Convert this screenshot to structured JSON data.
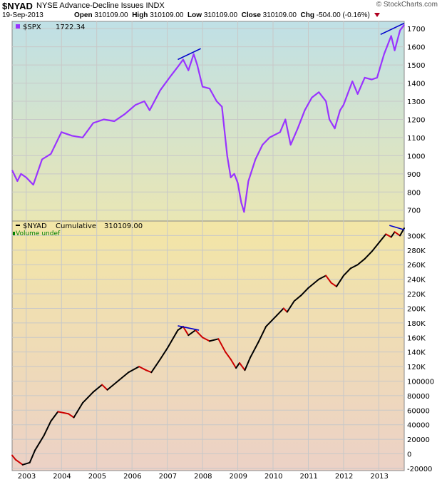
{
  "header": {
    "symbol": "$NYAD",
    "description": "NYSE Advance-Decline Issues  INDX",
    "date": "19-Sep-2013",
    "open_label": "Open",
    "open": "310109.00",
    "high_label": "High",
    "high": "310109.00",
    "low_label": "Low",
    "low": "310109.00",
    "close_label": "Close",
    "close": "310109.00",
    "chg_label": "Chg",
    "chg": "-504.00 (-0.16%)",
    "watermark": "© StockCharts.com"
  },
  "colors": {
    "spx_line": "#9933ff",
    "nyad_up": "#000000",
    "nyad_down": "#cc0000",
    "trendline": "#0000cc",
    "grid": "#c8c8c8",
    "volume_text": "#008000"
  },
  "chart_data": [
    {
      "type": "line",
      "legend": "$SPX",
      "legend_value": "1722.34",
      "ylim": [
        640,
        1740
      ],
      "yticks": [
        700,
        800,
        900,
        1000,
        1100,
        1200,
        1300,
        1400,
        1500,
        1600,
        1700
      ],
      "ytick_labels": [
        "700",
        "800",
        "900",
        "1000",
        "1100",
        "1200",
        "1300",
        "1400",
        "1500",
        "1600",
        "1700"
      ],
      "series": [
        {
          "x": [
            2002.6,
            2002.75,
            2002.85,
            2003.0,
            2003.2,
            2003.45,
            2003.7,
            2004.0,
            2004.3,
            2004.6,
            2004.9,
            2005.2,
            2005.5,
            2005.8,
            2006.1,
            2006.35,
            2006.5,
            2006.8,
            2007.1,
            2007.3,
            2007.45,
            2007.6,
            2007.75,
            2007.85,
            2008.0,
            2008.2,
            2008.4,
            2008.55,
            2008.7,
            2008.8,
            2008.9,
            2009.0,
            2009.1,
            2009.18,
            2009.3,
            2009.5,
            2009.7,
            2009.9,
            2010.2,
            2010.35,
            2010.5,
            2010.7,
            2010.9,
            2011.1,
            2011.3,
            2011.5,
            2011.6,
            2011.75,
            2011.9,
            2012.0,
            2012.25,
            2012.4,
            2012.6,
            2012.8,
            2012.95,
            2013.15,
            2013.35,
            2013.45,
            2013.6,
            2013.72
          ],
          "values": [
            920,
            860,
            900,
            880,
            840,
            980,
            1010,
            1130,
            1110,
            1100,
            1180,
            1200,
            1190,
            1230,
            1280,
            1300,
            1250,
            1360,
            1440,
            1490,
            1530,
            1470,
            1560,
            1500,
            1380,
            1370,
            1300,
            1270,
            1000,
            880,
            900,
            850,
            740,
            690,
            860,
            980,
            1060,
            1100,
            1130,
            1200,
            1060,
            1150,
            1250,
            1320,
            1350,
            1300,
            1200,
            1150,
            1250,
            1280,
            1410,
            1340,
            1430,
            1420,
            1430,
            1560,
            1660,
            1580,
            1690,
            1722
          ]
        }
      ]
    },
    {
      "type": "line",
      "legend": "$NYAD",
      "legend_series": "Cumulative",
      "legend_value": "310109.00",
      "volume_note": "Volume undef",
      "ylim": [
        -23000,
        320000
      ],
      "yticks": [
        -20000,
        0,
        20000,
        40000,
        60000,
        80000,
        100000,
        120000,
        140000,
        160000,
        180000,
        200000,
        220000,
        240000,
        260000,
        280000,
        300000
      ],
      "ytick_labels": [
        "-20000",
        "0",
        "20000",
        "40000",
        "60000",
        "80000",
        "100000",
        "120K",
        "140K",
        "160K",
        "180K",
        "200K",
        "220K",
        "240K",
        "260K",
        "280K",
        "300K"
      ],
      "series": [
        {
          "x": [
            2002.6,
            2002.7,
            2002.9,
            2003.1,
            2003.25,
            2003.5,
            2003.7,
            2003.9,
            2004.2,
            2004.35,
            2004.6,
            2004.9,
            2005.15,
            2005.3,
            2005.6,
            2005.9,
            2006.2,
            2006.4,
            2006.55,
            2006.8,
            2007.0,
            2007.3,
            2007.45,
            2007.6,
            2007.8,
            2008.0,
            2008.2,
            2008.45,
            2008.65,
            2008.8,
            2008.95,
            2009.05,
            2009.2,
            2009.35,
            2009.6,
            2009.8,
            2010.1,
            2010.3,
            2010.4,
            2010.6,
            2010.8,
            2011.0,
            2011.3,
            2011.5,
            2011.65,
            2011.8,
            2012.0,
            2012.2,
            2012.4,
            2012.6,
            2012.8,
            2013.0,
            2013.2,
            2013.35,
            2013.45,
            2013.6,
            2013.72
          ],
          "values": [
            -2000,
            -8000,
            -15000,
            -12000,
            5000,
            25000,
            45000,
            58000,
            55000,
            50000,
            70000,
            85000,
            95000,
            88000,
            100000,
            112000,
            120000,
            115000,
            112000,
            130000,
            145000,
            170000,
            175000,
            163000,
            170000,
            160000,
            155000,
            158000,
            140000,
            130000,
            118000,
            125000,
            115000,
            132000,
            155000,
            175000,
            190000,
            200000,
            195000,
            210000,
            218000,
            228000,
            240000,
            245000,
            235000,
            230000,
            245000,
            255000,
            260000,
            268000,
            278000,
            290000,
            302000,
            298000,
            305000,
            300000,
            310109
          ]
        }
      ]
    }
  ],
  "x_axis": {
    "ticks": [
      2003,
      2004,
      2005,
      2006,
      2007,
      2008,
      2009,
      2010,
      2011,
      2012,
      2013
    ],
    "labels": [
      "2003",
      "2004",
      "2005",
      "2006",
      "2007",
      "2008",
      "2009",
      "2010",
      "2011",
      "2012",
      "2013"
    ],
    "xlim": [
      2002.6,
      2013.72
    ]
  },
  "trendlines": [
    {
      "panel": 0,
      "from": [
        2007.3,
        1530
      ],
      "to": [
        2007.95,
        1590
      ]
    },
    {
      "panel": 0,
      "from": [
        2013.05,
        1668
      ],
      "to": [
        2013.72,
        1730
      ]
    },
    {
      "panel": 1,
      "from": [
        2007.3,
        176000
      ],
      "to": [
        2007.9,
        170000
      ]
    },
    {
      "panel": 1,
      "from": [
        2013.3,
        314000
      ],
      "to": [
        2013.72,
        308000
      ]
    }
  ]
}
